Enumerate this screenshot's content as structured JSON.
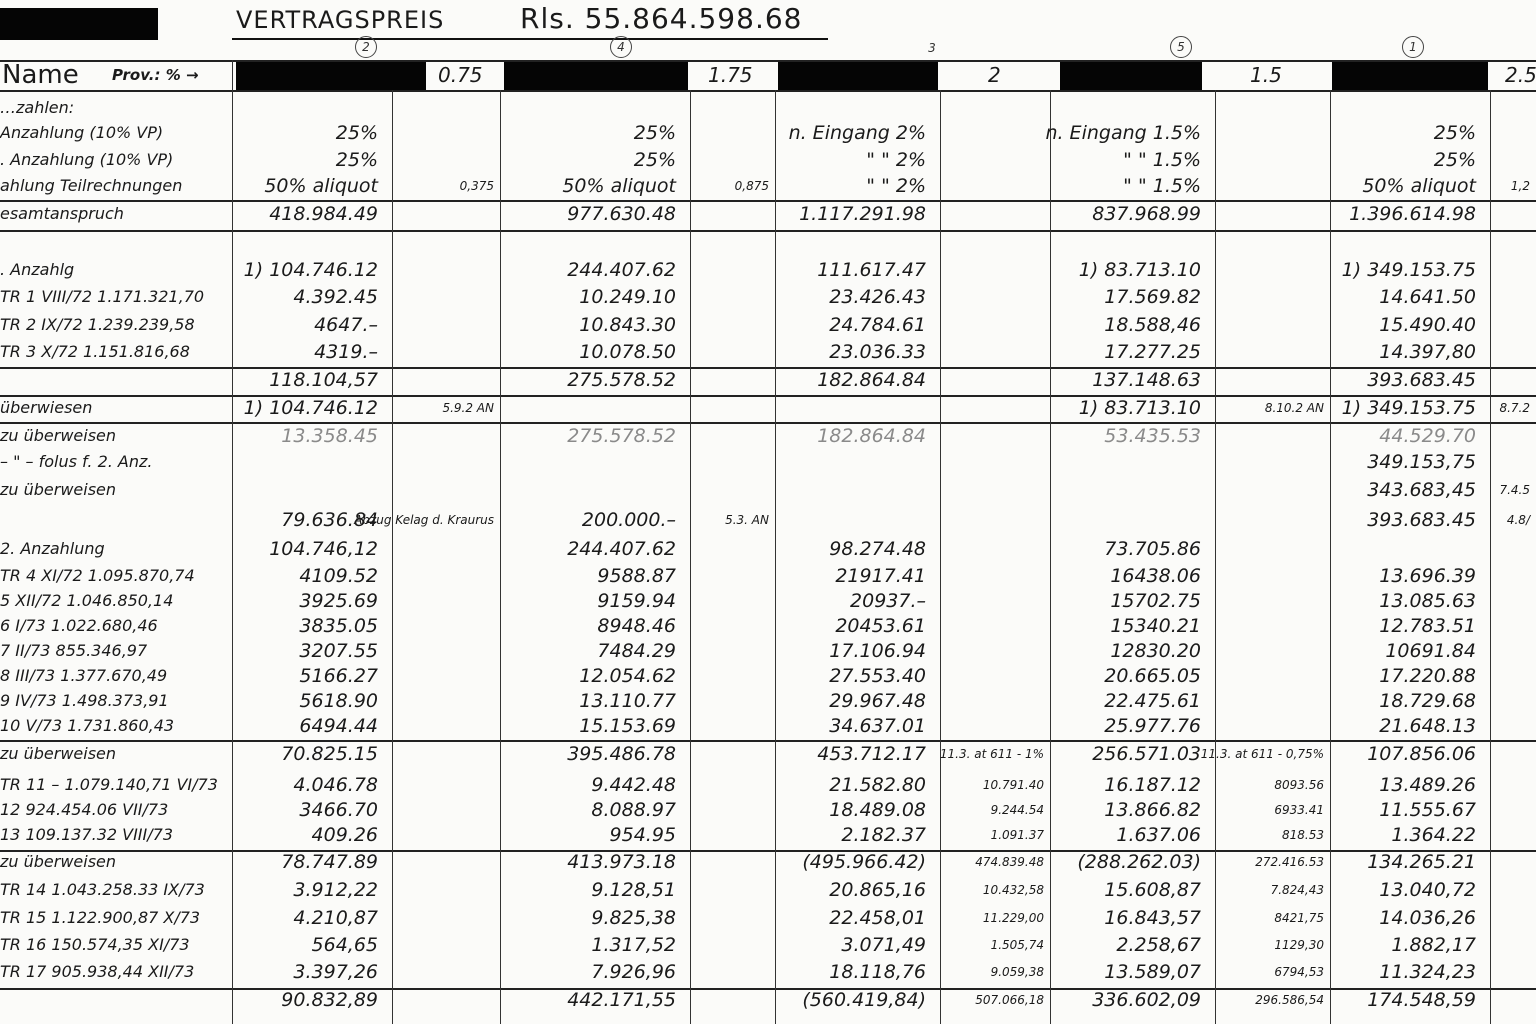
{
  "title": {
    "label": "VERTRAGSPREIS",
    "amount": "Rls. 55.864.598.68"
  },
  "circled_numbers": [
    "2",
    "4",
    "3",
    "5",
    "1"
  ],
  "header_row": {
    "name_label": "Name",
    "prov_label": "Prov.: % →",
    "rates": [
      "0.75",
      "1.75",
      "2",
      "1.5",
      "2.5"
    ]
  },
  "rows": [
    {
      "label": "…zahlen:",
      "cells": [
        "",
        "",
        "",
        "",
        "",
        "",
        "",
        "",
        "",
        ""
      ]
    },
    {
      "label": "Anzahlung (10% VP)",
      "cells": [
        "25%",
        "",
        "25%",
        "",
        "n. Eingang 2%",
        "",
        "n. Eingang 1.5%",
        "",
        "25%",
        ""
      ]
    },
    {
      "label": ". Anzahlung (10% VP)",
      "cells": [
        "25%",
        "",
        "25%",
        "",
        "\"   \"   2%",
        "",
        "\"   \"   1.5%",
        "",
        "25%",
        ""
      ]
    },
    {
      "label": "ahlung Teilrechnungen",
      "cells": [
        "50% aliquot",
        "0,375",
        "50% aliquot",
        "0,875",
        "\"   \"   2%",
        "",
        "\"   \"   1.5%",
        "",
        "50% aliquot",
        "1,2"
      ]
    },
    {
      "label": "esamtanspruch",
      "cells": [
        "418.984.49",
        "",
        "977.630.48",
        "",
        "1.117.291.98",
        "",
        "837.968.99",
        "",
        "1.396.614.98",
        ""
      ]
    },
    {
      "label": ". Anzahlg",
      "cells": [
        "1) 104.746.12",
        "",
        "244.407.62",
        "",
        "111.617.47",
        "",
        "1) 83.713.10",
        "",
        "1) 349.153.75",
        ""
      ]
    },
    {
      "label": "TR 1   VIII/72   1.171.321,70",
      "cells": [
        "4.392.45",
        "",
        "10.249.10",
        "",
        "23.426.43",
        "",
        "17.569.82",
        "",
        "14.641.50",
        ""
      ]
    },
    {
      "label": "TR 2   IX/72   1.239.239,58",
      "cells": [
        "4647.–",
        "",
        "10.843.30",
        "",
        "24.784.61",
        "",
        "18.588,46",
        "",
        "15.490.40",
        ""
      ]
    },
    {
      "label": "TR 3   X/72   1.151.816,68",
      "cells": [
        "4319.–",
        "",
        "10.078.50",
        "",
        "23.036.33",
        "",
        "17.277.25",
        "",
        "14.397,80",
        ""
      ]
    },
    {
      "label": "",
      "cells": [
        "118.104,57",
        "",
        "275.578.52",
        "",
        "182.864.84",
        "",
        "137.148.63",
        "",
        "393.683.45",
        ""
      ]
    },
    {
      "label": "überwiesen",
      "cells": [
        "1) 104.746.12",
        "5.9.2 AN",
        "",
        "",
        "",
        "",
        "1) 83.713.10",
        "8.10.2 AN",
        "1) 349.153.75",
        "8.7.2"
      ]
    },
    {
      "label": "zu überweisen",
      "cells": [
        "13.358.45",
        "",
        "275.578.52",
        "",
        "182.864.84",
        "",
        "53.435.53",
        "",
        "44.529.70",
        ""
      ]
    },
    {
      "label": "– \" – folus f. 2. Anz.",
      "cells": [
        "",
        "",
        "",
        "",
        "",
        "",
        "",
        "",
        "349.153,75",
        ""
      ]
    },
    {
      "label": "zu überweisen",
      "cells": [
        "",
        "",
        "",
        "",
        "",
        "",
        "",
        "",
        "343.683,45",
        "7.4.5"
      ]
    },
    {
      "label": "",
      "cells": [
        "79.636.84",
        "Abzug Kelag d. Kraurus",
        "200.000.–",
        "5.3. AN",
        "",
        "",
        "",
        "",
        "393.683.45",
        "4.8/"
      ]
    },
    {
      "label": "2. Anzahlung",
      "cells": [
        "104.746,12",
        "",
        "244.407.62",
        "",
        "98.274.48",
        "",
        "73.705.86",
        "",
        "",
        ""
      ]
    },
    {
      "label": "TR 4   XI/72   1.095.870,74",
      "cells": [
        "4109.52",
        "",
        "9588.87",
        "",
        "21917.41",
        "",
        "16438.06",
        "",
        "13.696.39",
        ""
      ]
    },
    {
      "label": "5   XII/72   1.046.850,14",
      "cells": [
        "3925.69",
        "",
        "9159.94",
        "",
        "20937.–",
        "",
        "15702.75",
        "",
        "13.085.63",
        ""
      ]
    },
    {
      "label": "6   I/73   1.022.680,46",
      "cells": [
        "3835.05",
        "",
        "8948.46",
        "",
        "20453.61",
        "",
        "15340.21",
        "",
        "12.783.51",
        ""
      ]
    },
    {
      "label": "7   II/73   855.346,97",
      "cells": [
        "3207.55",
        "",
        "7484.29",
        "",
        "17.106.94",
        "",
        "12830.20",
        "",
        "10691.84",
        ""
      ]
    },
    {
      "label": "8   III/73   1.377.670,49",
      "cells": [
        "5166.27",
        "",
        "12.054.62",
        "",
        "27.553.40",
        "",
        "20.665.05",
        "",
        "17.220.88",
        ""
      ]
    },
    {
      "label": "9   IV/73   1.498.373,91",
      "cells": [
        "5618.90",
        "",
        "13.110.77",
        "",
        "29.967.48",
        "",
        "22.475.61",
        "",
        "18.729.68",
        ""
      ]
    },
    {
      "label": "10   V/73   1.731.860,43",
      "cells": [
        "6494.44",
        "",
        "15.153.69",
        "",
        "34.637.01",
        "",
        "25.977.76",
        "",
        "21.648.13",
        ""
      ]
    },
    {
      "label": "zu überweisen",
      "cells": [
        "70.825.15",
        "",
        "395.486.78",
        "",
        "453.712.17",
        "11.3. at 611 - 1%",
        "256.571.03",
        "11.3. at 611 - 0,75%",
        "107.856.06",
        ""
      ]
    },
    {
      "label": "TR 11 – 1.079.140,71   VI/73",
      "cells": [
        "4.046.78",
        "",
        "9.442.48",
        "",
        "21.582.80",
        "10.791.40",
        "16.187.12",
        "8093.56",
        "13.489.26",
        ""
      ]
    },
    {
      "label": "12   924.454.06   VII/73",
      "cells": [
        "3466.70",
        "",
        "8.088.97",
        "",
        "18.489.08",
        "9.244.54",
        "13.866.82",
        "6933.41",
        "11.555.67",
        ""
      ]
    },
    {
      "label": "13   109.137.32   VIII/73",
      "cells": [
        "409.26",
        "",
        "954.95",
        "",
        "2.182.37",
        "1.091.37",
        "1.637.06",
        "818.53",
        "1.364.22",
        ""
      ]
    },
    {
      "label": "zu überweisen",
      "cells": [
        "78.747.89",
        "",
        "413.973.18",
        "",
        "(495.966.42)",
        "474.839.48",
        "(288.262.03)",
        "272.416.53",
        "134.265.21",
        ""
      ]
    },
    {
      "label": "TR 14   1.043.258.33   IX/73",
      "cells": [
        "3.912,22",
        "",
        "9.128,51",
        "",
        "20.865,16",
        "10.432,58",
        "15.608,87",
        "7.824,43",
        "13.040,72",
        ""
      ]
    },
    {
      "label": "TR 15   1.122.900,87   X/73",
      "cells": [
        "4.210,87",
        "",
        "9.825,38",
        "",
        "22.458,01",
        "11.229,00",
        "16.843,57",
        "8421,75",
        "14.036,26",
        ""
      ]
    },
    {
      "label": "TR 16   150.574,35   XI/73",
      "cells": [
        "564,65",
        "",
        "1.317,52",
        "",
        "3.071,49",
        "1.505,74",
        "2.258,67",
        "1129,30",
        "1.882,17",
        ""
      ]
    },
    {
      "label": "TR 17   905.938,44   XII/73",
      "cells": [
        "3.397,26",
        "",
        "7.926,96",
        "",
        "18.118,76",
        "9.059,38",
        "13.589,07",
        "6794,53",
        "11.324,23",
        ""
      ]
    },
    {
      "label": "",
      "cells": [
        "90.832,89",
        "",
        "442.171,55",
        "",
        "(560.419,84)",
        "507.066,18",
        "336.602,09",
        "296.586,54",
        "174.548,59",
        ""
      ]
    }
  ]
}
